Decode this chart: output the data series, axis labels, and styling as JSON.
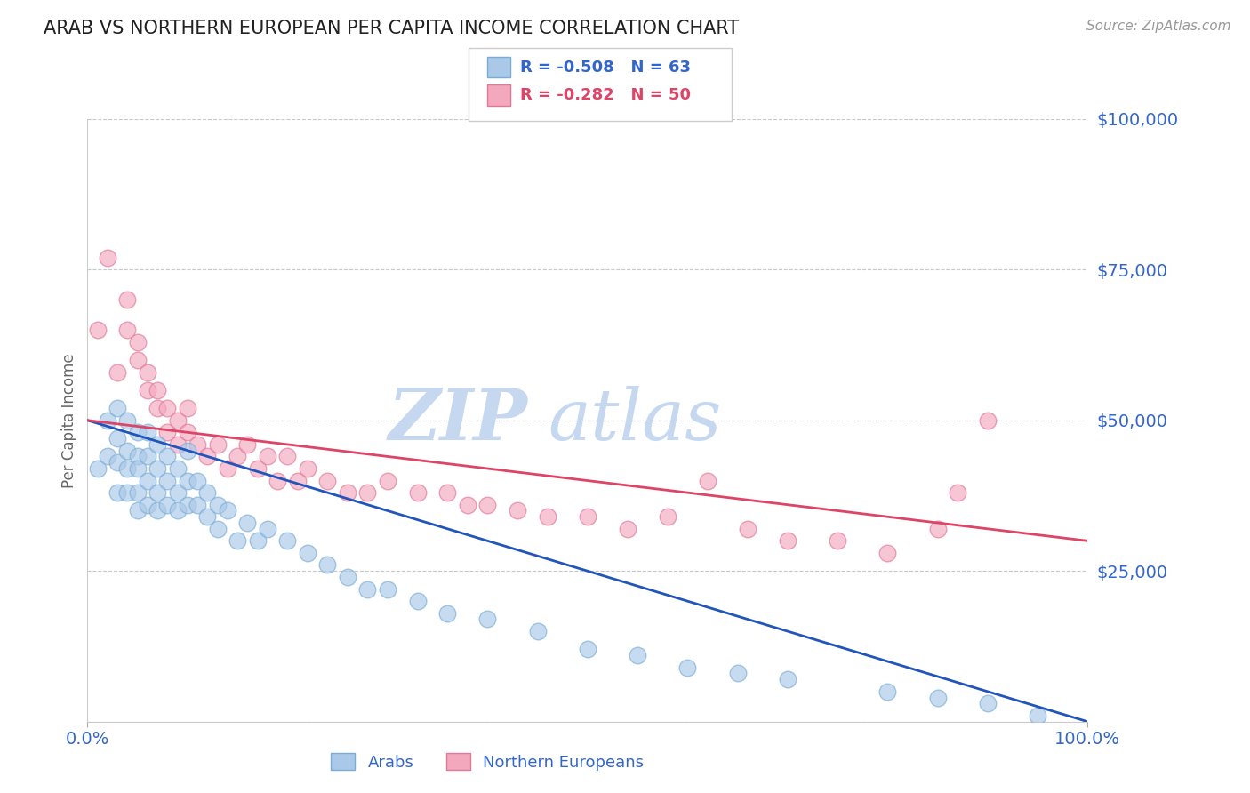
{
  "title": "ARAB VS NORTHERN EUROPEAN PER CAPITA INCOME CORRELATION CHART",
  "source": "Source: ZipAtlas.com",
  "ylabel": "Per Capita Income",
  "xlim": [
    0,
    1
  ],
  "ylim": [
    0,
    100000
  ],
  "yticks": [
    0,
    25000,
    50000,
    75000,
    100000
  ],
  "ytick_labels": [
    "",
    "$25,000",
    "$50,000",
    "$75,000",
    "$100,000"
  ],
  "xtick_labels": [
    "0.0%",
    "100.0%"
  ],
  "arab_color": "#aac8e8",
  "arab_edge_color": "#7aadd4",
  "northern_color": "#f4a8be",
  "northern_edge_color": "#e07898",
  "blue_line_color": "#2255bb",
  "pink_line_color": "#dd4466",
  "R_arab": -0.508,
  "N_arab": 63,
  "R_northern": -0.282,
  "N_northern": 50,
  "background_color": "#ffffff",
  "grid_color": "#c8c8c8",
  "title_color": "#222222",
  "tick_label_color": "#3366cc",
  "watermark_zip_color": "#c5d8f0",
  "watermark_atlas_color": "#c5d8f0",
  "arab_line_x0": 0.0,
  "arab_line_x1": 1.0,
  "arab_line_y0": 50000,
  "arab_line_y1": 0,
  "north_line_x0": 0.0,
  "north_line_x1": 1.0,
  "north_line_y0": 50000,
  "north_line_y1": 30000,
  "arab_scatter_x": [
    0.01,
    0.02,
    0.02,
    0.03,
    0.03,
    0.03,
    0.03,
    0.04,
    0.04,
    0.04,
    0.04,
    0.05,
    0.05,
    0.05,
    0.05,
    0.05,
    0.06,
    0.06,
    0.06,
    0.06,
    0.07,
    0.07,
    0.07,
    0.07,
    0.08,
    0.08,
    0.08,
    0.09,
    0.09,
    0.09,
    0.1,
    0.1,
    0.1,
    0.11,
    0.11,
    0.12,
    0.12,
    0.13,
    0.13,
    0.14,
    0.15,
    0.16,
    0.17,
    0.18,
    0.2,
    0.22,
    0.24,
    0.26,
    0.28,
    0.3,
    0.33,
    0.36,
    0.4,
    0.45,
    0.5,
    0.55,
    0.6,
    0.65,
    0.7,
    0.8,
    0.85,
    0.9,
    0.95
  ],
  "arab_scatter_y": [
    42000,
    50000,
    44000,
    52000,
    47000,
    43000,
    38000,
    50000,
    45000,
    42000,
    38000,
    48000,
    44000,
    42000,
    38000,
    35000,
    48000,
    44000,
    40000,
    36000,
    46000,
    42000,
    38000,
    35000,
    44000,
    40000,
    36000,
    42000,
    38000,
    35000,
    45000,
    40000,
    36000,
    40000,
    36000,
    38000,
    34000,
    36000,
    32000,
    35000,
    30000,
    33000,
    30000,
    32000,
    30000,
    28000,
    26000,
    24000,
    22000,
    22000,
    20000,
    18000,
    17000,
    15000,
    12000,
    11000,
    9000,
    8000,
    7000,
    5000,
    4000,
    3000,
    1000
  ],
  "northern_scatter_x": [
    0.01,
    0.02,
    0.03,
    0.04,
    0.04,
    0.05,
    0.05,
    0.06,
    0.06,
    0.07,
    0.07,
    0.08,
    0.08,
    0.09,
    0.09,
    0.1,
    0.1,
    0.11,
    0.12,
    0.13,
    0.14,
    0.15,
    0.16,
    0.17,
    0.18,
    0.19,
    0.2,
    0.21,
    0.22,
    0.24,
    0.26,
    0.28,
    0.3,
    0.33,
    0.36,
    0.38,
    0.4,
    0.43,
    0.46,
    0.5,
    0.54,
    0.58,
    0.62,
    0.66,
    0.7,
    0.75,
    0.8,
    0.85,
    0.87,
    0.9
  ],
  "northern_scatter_y": [
    65000,
    77000,
    58000,
    70000,
    65000,
    63000,
    60000,
    58000,
    55000,
    55000,
    52000,
    52000,
    48000,
    50000,
    46000,
    52000,
    48000,
    46000,
    44000,
    46000,
    42000,
    44000,
    46000,
    42000,
    44000,
    40000,
    44000,
    40000,
    42000,
    40000,
    38000,
    38000,
    40000,
    38000,
    38000,
    36000,
    36000,
    35000,
    34000,
    34000,
    32000,
    34000,
    40000,
    32000,
    30000,
    30000,
    28000,
    32000,
    38000,
    50000
  ]
}
